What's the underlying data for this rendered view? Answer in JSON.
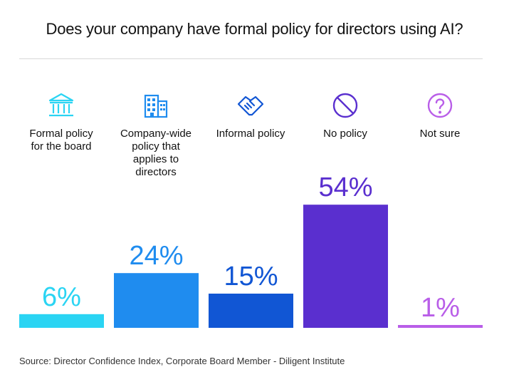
{
  "chart_data": {
    "type": "bar",
    "title": "Does your company have formal policy for directors using AI?",
    "categories": [
      "Formal policy for the board",
      "Company-wide policy that applies to directors",
      "Informal policy",
      "No policy",
      "Not sure"
    ],
    "category_lines": [
      [
        "Formal policy",
        "for the board"
      ],
      [
        "Company-wide",
        "policy that",
        "applies to",
        "directors"
      ],
      [
        "Informal policy"
      ],
      [
        "No policy"
      ],
      [
        "Not sure"
      ]
    ],
    "values": [
      6,
      24,
      15,
      54,
      1
    ],
    "value_labels": [
      "6%",
      "24%",
      "15%",
      "54%",
      "1%"
    ],
    "icons": [
      "bank-icon",
      "building-icon",
      "handshake-icon",
      "prohibited-icon",
      "question-icon"
    ],
    "colors": [
      "#2ad4f3",
      "#1f8cef",
      "#1156d4",
      "#5a2fcf",
      "#b95ee8"
    ],
    "grid": false,
    "legend": "none",
    "xlabel": "",
    "ylabel": "",
    "source": "Source: Director Confidence Index, Corporate Board Member - Diligent Institute"
  }
}
